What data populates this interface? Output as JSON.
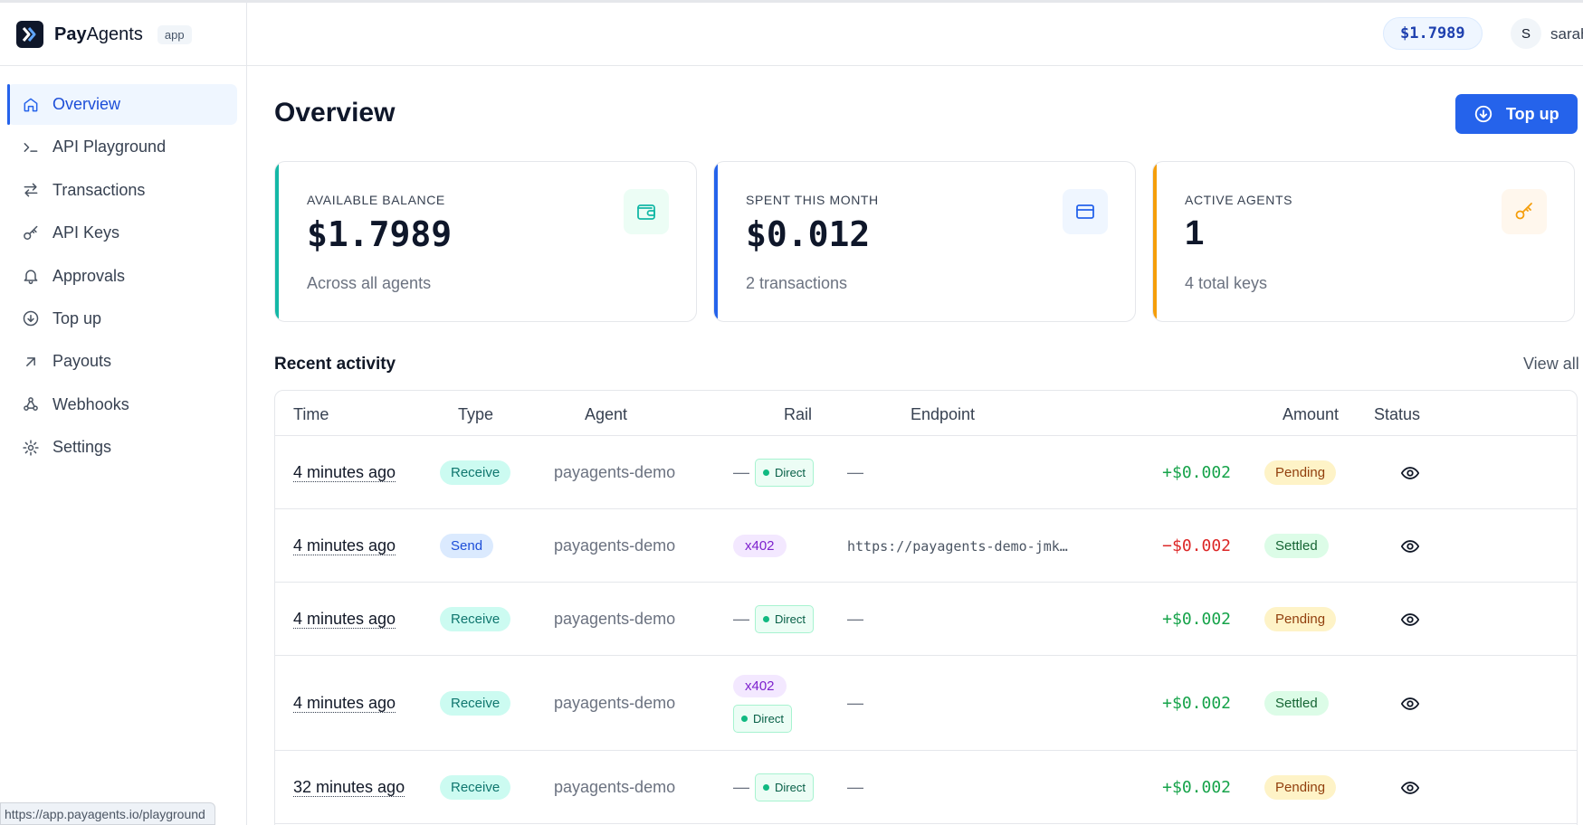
{
  "app": {
    "name_bold": "Pay",
    "name_rest": "Agents",
    "tag": "app"
  },
  "header": {
    "balance": "$1.7989",
    "avatar_initial": "S",
    "user_name": "sarah"
  },
  "sidebar": {
    "items": [
      {
        "label": "Overview",
        "icon": "home-icon",
        "active": true
      },
      {
        "label": "API Playground",
        "icon": "terminal-icon"
      },
      {
        "label": "Transactions",
        "icon": "arrows-left-right-icon"
      },
      {
        "label": "API Keys",
        "icon": "key-icon"
      },
      {
        "label": "Approvals",
        "icon": "bell-icon"
      },
      {
        "label": "Top up",
        "icon": "arrow-down-circle-icon"
      },
      {
        "label": "Payouts",
        "icon": "arrow-up-right-icon"
      },
      {
        "label": "Webhooks",
        "icon": "webhook-icon"
      },
      {
        "label": "Settings",
        "icon": "gear-icon"
      }
    ]
  },
  "status_bar": {
    "url": "https://app.payagents.io/playground"
  },
  "main": {
    "title": "Overview",
    "topup_label": "Top up",
    "cards": [
      {
        "label": "AVAILABLE BALANCE",
        "value": "$1.7989",
        "sub": "Across all agents",
        "icon": "wallet-icon",
        "accent": "#14b8a6"
      },
      {
        "label": "SPENT THIS MONTH",
        "value": "$0.012",
        "sub": "2 transactions",
        "icon": "credit-card-icon",
        "accent": "#2563eb"
      },
      {
        "label": "ACTIVE AGENTS",
        "value": "1",
        "sub": "4 total keys",
        "icon": "key-icon",
        "accent": "#f59e0b"
      }
    ],
    "recent": {
      "title": "Recent activity",
      "view_all": "View all",
      "columns": [
        "Time",
        "Type",
        "Agent",
        "Rail",
        "Endpoint",
        "Amount",
        "Status"
      ],
      "rows": [
        {
          "time": "4 minutes ago",
          "type": "Receive",
          "agent": "payagents-demo",
          "rail_prefix": "—",
          "rail_x402": "",
          "rail_direct": "Direct",
          "endpoint": "—",
          "amount": "+$0.002",
          "status": "Pending"
        },
        {
          "time": "4 minutes ago",
          "type": "Send",
          "agent": "payagents-demo",
          "rail_prefix": "",
          "rail_x402": "x402",
          "rail_direct": "",
          "endpoint": "https://payagents-demo-jmk…",
          "amount": "−$0.002",
          "status": "Settled"
        },
        {
          "time": "4 minutes ago",
          "type": "Receive",
          "agent": "payagents-demo",
          "rail_prefix": "—",
          "rail_x402": "",
          "rail_direct": "Direct",
          "endpoint": "—",
          "amount": "+$0.002",
          "status": "Pending"
        },
        {
          "time": "4 minutes ago",
          "type": "Receive",
          "agent": "payagents-demo",
          "rail_prefix": "",
          "rail_x402": "x402",
          "rail_direct": "Direct",
          "endpoint": "—",
          "amount": "+$0.002",
          "status": "Settled"
        },
        {
          "time": "32 minutes ago",
          "type": "Receive",
          "agent": "payagents-demo",
          "rail_prefix": "—",
          "rail_x402": "",
          "rail_direct": "Direct",
          "endpoint": "—",
          "amount": "+$0.002",
          "status": "Pending"
        }
      ]
    }
  }
}
